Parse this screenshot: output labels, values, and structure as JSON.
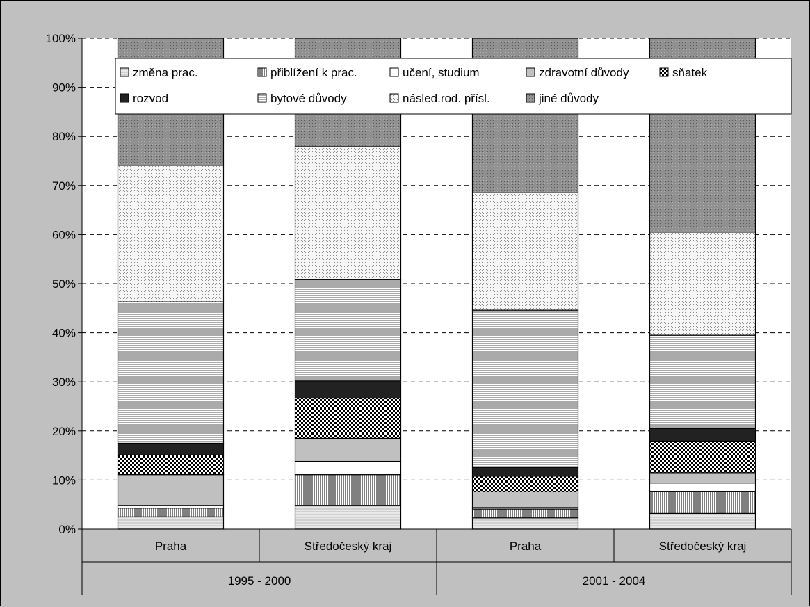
{
  "chart_data": {
    "type": "bar",
    "stacked": true,
    "percent": true,
    "categories": [
      "Praha",
      "Středočeský kraj",
      "Praha",
      "Středočeský kraj"
    ],
    "groups": [
      {
        "label": "1995 - 2000",
        "categories": [
          0,
          1
        ]
      },
      {
        "label": "2001 - 2004",
        "categories": [
          2,
          3
        ]
      }
    ],
    "yticks": [
      "0%",
      "10%",
      "20%",
      "30%",
      "40%",
      "50%",
      "60%",
      "70%",
      "80%",
      "90%",
      "100%"
    ],
    "ylim": [
      0,
      100
    ],
    "grid": true,
    "legend_position": "top",
    "series": [
      {
        "name": "změna prac.",
        "values": [
          2.5,
          4.8,
          2.3,
          3.2
        ]
      },
      {
        "name": "přiblížení k prac.",
        "values": [
          1.8,
          6.3,
          1.8,
          4.5
        ]
      },
      {
        "name": "učení, studium",
        "values": [
          0.5,
          2.7,
          0.3,
          1.7
        ]
      },
      {
        "name": "zdravotní důvody",
        "values": [
          6.3,
          4.7,
          3.2,
          2.1
        ]
      },
      {
        "name": "sňatek",
        "values": [
          4.0,
          8.2,
          3.2,
          6.4
        ]
      },
      {
        "name": "rozvod",
        "values": [
          2.4,
          3.5,
          1.8,
          2.6
        ]
      },
      {
        "name": "bytové důvody",
        "values": [
          28.8,
          20.7,
          32.0,
          19.0
        ]
      },
      {
        "name": "násled.rod. přísl.",
        "values": [
          27.8,
          27.0,
          23.9,
          21.0
        ]
      },
      {
        "name": "jiné důvody",
        "values": [
          25.9,
          22.1,
          31.5,
          39.5
        ]
      }
    ]
  }
}
